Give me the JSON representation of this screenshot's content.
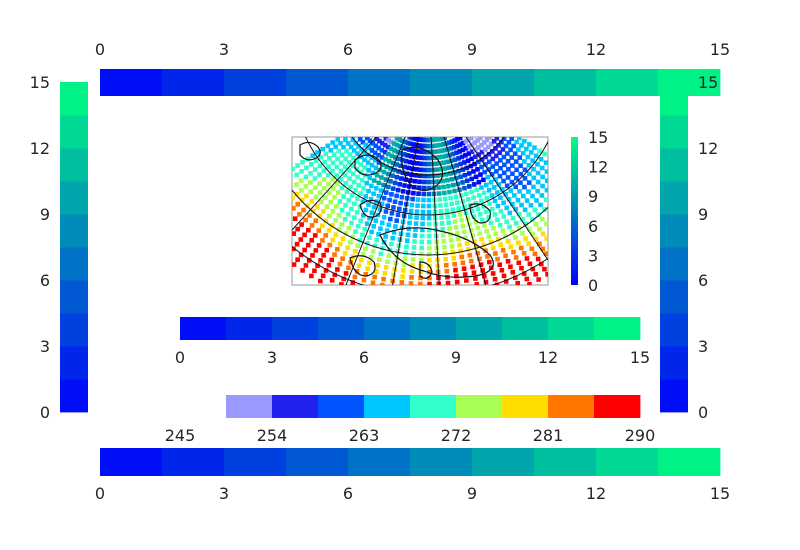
{
  "figure": {
    "colorbars": {
      "top": {
        "ticks": [
          "0",
          "3",
          "6",
          "9",
          "12",
          "15"
        ],
        "range": [
          0,
          15
        ],
        "n_segments": 10
      },
      "left": {
        "ticks": [
          "0",
          "3",
          "6",
          "9",
          "12",
          "15"
        ],
        "range": [
          0,
          15
        ],
        "n_segments": 10
      },
      "right": {
        "ticks": [
          "0",
          "3",
          "6",
          "9",
          "12",
          "15"
        ],
        "range": [
          0,
          15
        ],
        "n_segments": 10
      },
      "middle": {
        "ticks": [
          "0",
          "3",
          "6",
          "9",
          "12",
          "15"
        ],
        "range": [
          0,
          15
        ],
        "n_segments": 10
      },
      "bottom": {
        "ticks": [
          "0",
          "3",
          "6",
          "9",
          "12",
          "15"
        ],
        "range": [
          0,
          15
        ],
        "n_segments": 10
      },
      "inset": {
        "ticks": [
          "0",
          "3",
          "6",
          "9",
          "12",
          "15"
        ],
        "range": [
          0,
          15
        ]
      },
      "temperature": {
        "ticks": [
          "245",
          "254",
          "263",
          "272",
          "281",
          "290"
        ],
        "range": [
          245,
          290
        ],
        "colors": [
          "#9999ff",
          "#2222ee",
          "#0055ff",
          "#00c8ff",
          "#33ffcc",
          "#aaff55",
          "#ffdd00",
          "#ff7700",
          "#ff0000"
        ]
      }
    },
    "colormap_low": "#0000ff",
    "colormap_high": "#00ff80"
  },
  "chart_data": {
    "type": "heatmap",
    "title": "",
    "description_panels": [
      "polar stereographic map of Europe colored by wind speed 0-15 and temperature 245-290"
    ],
    "wind_speed_range": [
      0,
      15
    ],
    "temperature_range": [
      245,
      290
    ],
    "colorbar_tick_values": [
      0,
      3,
      6,
      9,
      12,
      15
    ],
    "temperature_tick_values": [
      245,
      254,
      263,
      272,
      281,
      290
    ]
  }
}
